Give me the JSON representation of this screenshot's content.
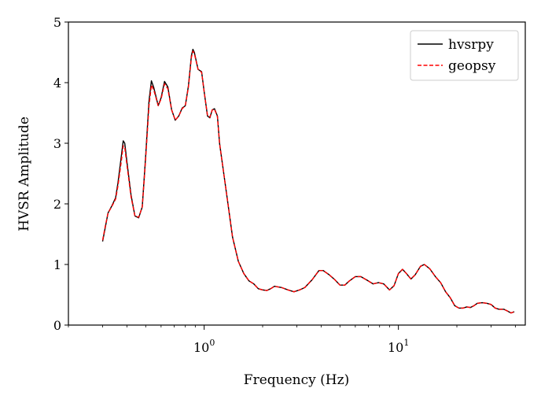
{
  "chart_data": {
    "type": "line",
    "title": "",
    "xlabel": "Frequency (Hz)",
    "ylabel": "HVSR Amplitude",
    "xscale": "log",
    "xlim": [
      0.2,
      45
    ],
    "ylim": [
      0,
      5
    ],
    "yticks": [
      0,
      1,
      2,
      3,
      4,
      5
    ],
    "xticks": [
      {
        "value": 1,
        "base": "10",
        "exp": "0"
      },
      {
        "value": 10,
        "base": "10",
        "exp": "1"
      }
    ],
    "grid": false,
    "legend": "top-right",
    "series": [
      {
        "name": "hvsrpy",
        "color": "#000000",
        "style": "solid",
        "points": [
          [
            0.3,
            1.38
          ],
          [
            0.31,
            1.62
          ],
          [
            0.32,
            1.85
          ],
          [
            0.335,
            1.97
          ],
          [
            0.35,
            2.1
          ],
          [
            0.36,
            2.35
          ],
          [
            0.375,
            2.8
          ],
          [
            0.383,
            3.04
          ],
          [
            0.39,
            3.0
          ],
          [
            0.4,
            2.7
          ],
          [
            0.42,
            2.15
          ],
          [
            0.44,
            1.8
          ],
          [
            0.46,
            1.77
          ],
          [
            0.48,
            1.95
          ],
          [
            0.5,
            2.8
          ],
          [
            0.52,
            3.7
          ],
          [
            0.535,
            4.03
          ],
          [
            0.55,
            3.92
          ],
          [
            0.58,
            3.62
          ],
          [
            0.6,
            3.75
          ],
          [
            0.625,
            4.02
          ],
          [
            0.65,
            3.93
          ],
          [
            0.68,
            3.55
          ],
          [
            0.71,
            3.38
          ],
          [
            0.74,
            3.45
          ],
          [
            0.77,
            3.58
          ],
          [
            0.8,
            3.62
          ],
          [
            0.83,
            3.95
          ],
          [
            0.86,
            4.45
          ],
          [
            0.875,
            4.55
          ],
          [
            0.89,
            4.5
          ],
          [
            0.93,
            4.22
          ],
          [
            0.97,
            4.18
          ],
          [
            1.0,
            3.85
          ],
          [
            1.04,
            3.45
          ],
          [
            1.07,
            3.42
          ],
          [
            1.1,
            3.55
          ],
          [
            1.13,
            3.57
          ],
          [
            1.17,
            3.45
          ],
          [
            1.2,
            3.0
          ],
          [
            1.3,
            2.2
          ],
          [
            1.4,
            1.45
          ],
          [
            1.5,
            1.05
          ],
          [
            1.6,
            0.85
          ],
          [
            1.7,
            0.73
          ],
          [
            1.8,
            0.68
          ],
          [
            1.9,
            0.6
          ],
          [
            2.0,
            0.58
          ],
          [
            2.1,
            0.57
          ],
          [
            2.2,
            0.6
          ],
          [
            2.3,
            0.64
          ],
          [
            2.5,
            0.62
          ],
          [
            2.7,
            0.58
          ],
          [
            2.9,
            0.55
          ],
          [
            3.1,
            0.58
          ],
          [
            3.3,
            0.62
          ],
          [
            3.6,
            0.75
          ],
          [
            3.9,
            0.9
          ],
          [
            4.1,
            0.9
          ],
          [
            4.4,
            0.83
          ],
          [
            4.7,
            0.75
          ],
          [
            5.0,
            0.66
          ],
          [
            5.3,
            0.66
          ],
          [
            5.6,
            0.73
          ],
          [
            6.0,
            0.8
          ],
          [
            6.4,
            0.8
          ],
          [
            6.9,
            0.74
          ],
          [
            7.4,
            0.68
          ],
          [
            7.9,
            0.7
          ],
          [
            8.4,
            0.68
          ],
          [
            9.0,
            0.58
          ],
          [
            9.5,
            0.65
          ],
          [
            10.0,
            0.85
          ],
          [
            10.5,
            0.92
          ],
          [
            11.0,
            0.85
          ],
          [
            11.6,
            0.76
          ],
          [
            12.2,
            0.83
          ],
          [
            13.0,
            0.97
          ],
          [
            13.6,
            1.0
          ],
          [
            14.5,
            0.93
          ],
          [
            15.5,
            0.8
          ],
          [
            16.5,
            0.7
          ],
          [
            17.5,
            0.55
          ],
          [
            18.5,
            0.45
          ],
          [
            19.5,
            0.32
          ],
          [
            20.5,
            0.28
          ],
          [
            21.5,
            0.28
          ],
          [
            22.5,
            0.3
          ],
          [
            23.5,
            0.29
          ],
          [
            24.5,
            0.32
          ],
          [
            25.5,
            0.36
          ],
          [
            27.0,
            0.37
          ],
          [
            28.5,
            0.36
          ],
          [
            30.0,
            0.34
          ],
          [
            31.5,
            0.28
          ],
          [
            33.0,
            0.26
          ],
          [
            35.0,
            0.26
          ],
          [
            36.5,
            0.23
          ],
          [
            38.0,
            0.2
          ],
          [
            39.5,
            0.22
          ]
        ]
      },
      {
        "name": "geopsy",
        "color": "#ff0000",
        "style": "dashed",
        "points": [
          [
            0.3,
            1.4
          ],
          [
            0.31,
            1.64
          ],
          [
            0.32,
            1.85
          ],
          [
            0.335,
            1.96
          ],
          [
            0.35,
            2.08
          ],
          [
            0.36,
            2.3
          ],
          [
            0.375,
            2.72
          ],
          [
            0.383,
            2.96
          ],
          [
            0.39,
            2.93
          ],
          [
            0.4,
            2.65
          ],
          [
            0.42,
            2.12
          ],
          [
            0.44,
            1.8
          ],
          [
            0.46,
            1.78
          ],
          [
            0.48,
            1.95
          ],
          [
            0.5,
            2.75
          ],
          [
            0.52,
            3.62
          ],
          [
            0.535,
            3.96
          ],
          [
            0.55,
            3.88
          ],
          [
            0.58,
            3.62
          ],
          [
            0.6,
            3.73
          ],
          [
            0.625,
            3.98
          ],
          [
            0.65,
            3.9
          ],
          [
            0.68,
            3.55
          ],
          [
            0.71,
            3.38
          ],
          [
            0.74,
            3.45
          ],
          [
            0.77,
            3.57
          ],
          [
            0.8,
            3.62
          ],
          [
            0.83,
            3.93
          ],
          [
            0.86,
            4.42
          ],
          [
            0.875,
            4.52
          ],
          [
            0.89,
            4.48
          ],
          [
            0.93,
            4.22
          ],
          [
            0.97,
            4.17
          ],
          [
            1.0,
            3.85
          ],
          [
            1.04,
            3.46
          ],
          [
            1.07,
            3.43
          ],
          [
            1.1,
            3.55
          ],
          [
            1.13,
            3.56
          ],
          [
            1.17,
            3.44
          ],
          [
            1.2,
            3.0
          ],
          [
            1.3,
            2.2
          ],
          [
            1.4,
            1.45
          ],
          [
            1.5,
            1.05
          ],
          [
            1.6,
            0.85
          ],
          [
            1.7,
            0.73
          ],
          [
            1.8,
            0.68
          ],
          [
            1.9,
            0.6
          ],
          [
            2.0,
            0.58
          ],
          [
            2.1,
            0.57
          ],
          [
            2.2,
            0.6
          ],
          [
            2.3,
            0.64
          ],
          [
            2.5,
            0.62
          ],
          [
            2.7,
            0.58
          ],
          [
            2.9,
            0.55
          ],
          [
            3.1,
            0.58
          ],
          [
            3.3,
            0.62
          ],
          [
            3.6,
            0.75
          ],
          [
            3.9,
            0.9
          ],
          [
            4.1,
            0.9
          ],
          [
            4.4,
            0.83
          ],
          [
            4.7,
            0.75
          ],
          [
            5.0,
            0.66
          ],
          [
            5.3,
            0.66
          ],
          [
            5.6,
            0.73
          ],
          [
            6.0,
            0.8
          ],
          [
            6.4,
            0.8
          ],
          [
            6.9,
            0.74
          ],
          [
            7.4,
            0.68
          ],
          [
            7.9,
            0.7
          ],
          [
            8.4,
            0.68
          ],
          [
            9.0,
            0.58
          ],
          [
            9.5,
            0.65
          ],
          [
            10.0,
            0.85
          ],
          [
            10.5,
            0.92
          ],
          [
            11.0,
            0.85
          ],
          [
            11.6,
            0.76
          ],
          [
            12.2,
            0.83
          ],
          [
            13.0,
            0.97
          ],
          [
            13.6,
            1.0
          ],
          [
            14.5,
            0.93
          ],
          [
            15.5,
            0.8
          ],
          [
            16.5,
            0.7
          ],
          [
            17.5,
            0.55
          ],
          [
            18.5,
            0.45
          ],
          [
            19.5,
            0.32
          ],
          [
            20.5,
            0.28
          ],
          [
            21.5,
            0.28
          ],
          [
            22.5,
            0.3
          ],
          [
            23.5,
            0.29
          ],
          [
            24.5,
            0.32
          ],
          [
            25.5,
            0.36
          ],
          [
            27.0,
            0.37
          ],
          [
            28.5,
            0.36
          ],
          [
            30.0,
            0.34
          ],
          [
            31.5,
            0.28
          ],
          [
            33.0,
            0.26
          ],
          [
            35.0,
            0.26
          ],
          [
            36.5,
            0.23
          ],
          [
            38.0,
            0.2
          ],
          [
            39.5,
            0.22
          ]
        ]
      }
    ]
  }
}
